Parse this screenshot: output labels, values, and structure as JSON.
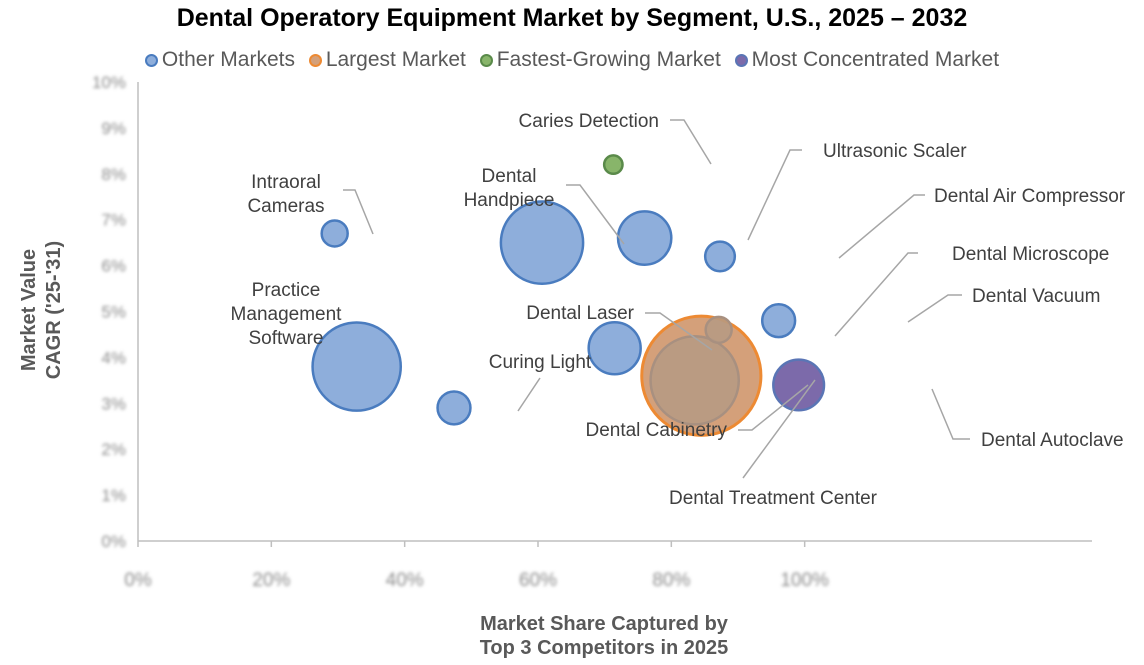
{
  "chart_data": {
    "type": "bubble",
    "title": "Dental Operatory Equipment Market by Segment, U.S., 2025 – 2032",
    "xlabel": "Market Share Captured by Top 3 Competitors in 2025",
    "xlabel_lines": [
      "Market Share Captured by",
      "Top 3 Competitors in 2025"
    ],
    "ylabel": "Market Value CAGR ('25-'31)",
    "ylabel_lines": [
      "Market Value",
      "CAGR ('25-'31)"
    ],
    "xlim": [
      0,
      1.2
    ],
    "ylim": [
      0,
      0.1
    ],
    "x_ticks": [
      "0%",
      "20%",
      "40%",
      "60%",
      "80%",
      "100%"
    ],
    "y_ticks": [
      "0%",
      "1%",
      "2%",
      "3%",
      "4%",
      "5%",
      "6%",
      "7%",
      "8%",
      "9%",
      "10%"
    ],
    "legend": {
      "position": "top",
      "items": [
        {
          "label": "Other Markets",
          "key": "other"
        },
        {
          "label": "Largest Market",
          "key": "largest"
        },
        {
          "label": "Fastest-Growing Market",
          "key": "fastest"
        },
        {
          "label": "Most Concentrated Market",
          "key": "concentrated"
        }
      ]
    },
    "colors": {
      "other": {
        "fill": "#8eaedb",
        "stroke": "#4a7cbf"
      },
      "largest": {
        "fill": "#d4a07a",
        "stroke": "#ed8a33"
      },
      "fastest": {
        "fill": "#88b56a",
        "stroke": "#5a8a4a"
      },
      "concentrated": {
        "fill": "#7c6aaa",
        "stroke": "#5a75b5"
      },
      "overlay": {
        "fill": "#b59a84",
        "stroke": "#a89080"
      }
    },
    "points": [
      {
        "label": "Intraoral Cameras",
        "label_lines": [
          "Intraoral",
          "Cameras"
        ],
        "x": 0.295,
        "y": 0.067,
        "size": 1.0,
        "category": "other"
      },
      {
        "label": "Practice Management Software",
        "label_lines": [
          "Practice",
          "Management",
          "Software"
        ],
        "x": 0.328,
        "y": 0.038,
        "size": 11.5,
        "category": "other"
      },
      {
        "label": "Curing Light",
        "label_lines": [
          "Curing Light"
        ],
        "x": 0.474,
        "y": 0.029,
        "size": 1.6,
        "category": "other"
      },
      {
        "label": "Dental Handpiece",
        "label_lines": [
          "Dental",
          "Handpiece"
        ],
        "x": 0.606,
        "y": 0.065,
        "size": 10.0,
        "category": "other"
      },
      {
        "label": "Caries Detection",
        "label_lines": [
          "Caries Detection"
        ],
        "x": 0.713,
        "y": 0.082,
        "size": 0.5,
        "category": "fastest"
      },
      {
        "label": "Dental Laser",
        "label_lines": [
          "Dental Laser"
        ],
        "x": 0.715,
        "y": 0.042,
        "size": 4.0,
        "category": "other"
      },
      {
        "label": "Ultrasonic Scaler",
        "label_lines": [
          "Ultrasonic Scaler"
        ],
        "x": 0.76,
        "y": 0.066,
        "size": 4.2,
        "category": "other"
      },
      {
        "label": "Dental Air Compressor",
        "label_lines": [
          "Dental Air Compressor"
        ],
        "x": 0.873,
        "y": 0.062,
        "size": 1.3,
        "category": "other"
      },
      {
        "label": "Dental Treatment Center",
        "label_lines": [
          "Dental Treatment Center"
        ],
        "x": 0.845,
        "y": 0.036,
        "size": 21.0,
        "category": "largest"
      },
      {
        "label": "Dental Cabinetry",
        "label_lines": [
          "Dental Cabinetry"
        ],
        "x": 0.835,
        "y": 0.035,
        "size": 11.5,
        "category": "overlay"
      },
      {
        "label": "Dental Microscope",
        "label_lines": [
          "Dental Microscope"
        ],
        "x": 0.871,
        "y": 0.046,
        "size": 1.0,
        "category": "overlay"
      },
      {
        "label": "Dental Vacuum",
        "label_lines": [
          "Dental Vacuum"
        ],
        "x": 0.961,
        "y": 0.048,
        "size": 1.6,
        "category": "other"
      },
      {
        "label": "Dental Autoclave",
        "label_lines": [
          "Dental Autoclave"
        ],
        "x": 0.991,
        "y": 0.034,
        "size": 3.8,
        "category": "concentrated"
      }
    ]
  }
}
